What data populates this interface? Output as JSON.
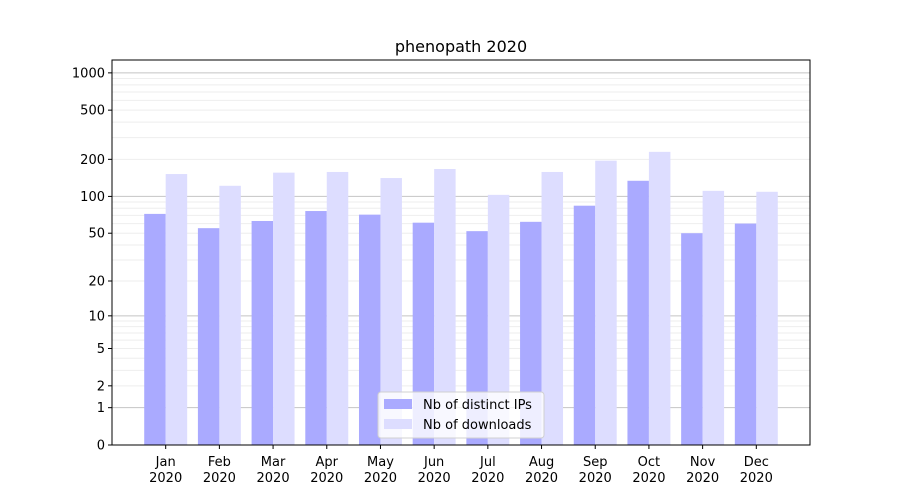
{
  "chart_data": {
    "type": "bar",
    "title": "phenopath 2020",
    "xlabel": "",
    "ylabel": "",
    "yscale": "log10(1+y)",
    "ylim": [
      0,
      1270
    ],
    "yticks": [
      0,
      1,
      2,
      5,
      10,
      20,
      50,
      100,
      200,
      500,
      1000
    ],
    "ytick_labels": [
      "0",
      "1",
      "2",
      "5",
      "10",
      "20",
      "50",
      "100",
      "200",
      "500",
      "1000"
    ],
    "grid": "major and minor horizontal",
    "legend_position": "bottom-center",
    "categories": [
      "Jan\n2020",
      "Feb\n2020",
      "Mar\n2020",
      "Apr\n2020",
      "May\n2020",
      "Jun\n2020",
      "Jul\n2020",
      "Aug\n2020",
      "Sep\n2020",
      "Oct\n2020",
      "Nov\n2020",
      "Dec\n2020"
    ],
    "series": [
      {
        "name": "Nb of distinct IPs",
        "color": "#aaaaff",
        "values": [
          72,
          55,
          63,
          76,
          71,
          61,
          52,
          62,
          84,
          134,
          50,
          60
        ]
      },
      {
        "name": "Nb of downloads",
        "color": "#ddddff",
        "values": [
          152,
          122,
          156,
          158,
          141,
          167,
          103,
          158,
          195,
          230,
          111,
          109
        ]
      }
    ]
  }
}
